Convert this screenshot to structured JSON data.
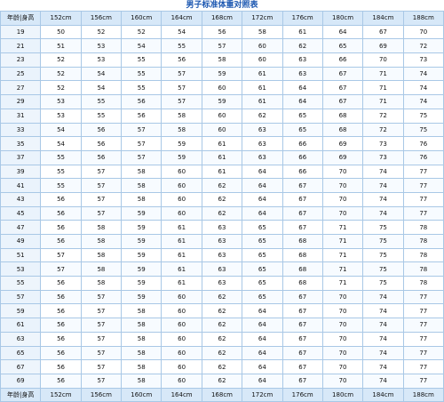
{
  "title": "男子标准体重对照表",
  "header": [
    "年龄|身高",
    "152cm",
    "156cm",
    "160cm",
    "164cm",
    "168cm",
    "172cm",
    "176cm",
    "180cm",
    "184cm",
    "188cm"
  ],
  "rows": [
    [
      "19",
      "50",
      "52",
      "52",
      "54",
      "56",
      "58",
      "61",
      "64",
      "67",
      "70"
    ],
    [
      "21",
      "51",
      "53",
      "54",
      "55",
      "57",
      "60",
      "62",
      "65",
      "69",
      "72"
    ],
    [
      "23",
      "52",
      "53",
      "55",
      "56",
      "58",
      "60",
      "63",
      "66",
      "70",
      "73"
    ],
    [
      "25",
      "52",
      "54",
      "55",
      "57",
      "59",
      "61",
      "63",
      "67",
      "71",
      "74"
    ],
    [
      "27",
      "52",
      "54",
      "55",
      "57",
      "60",
      "61",
      "64",
      "67",
      "71",
      "74"
    ],
    [
      "29",
      "53",
      "55",
      "56",
      "57",
      "59",
      "61",
      "64",
      "67",
      "71",
      "74"
    ],
    [
      "31",
      "53",
      "55",
      "56",
      "58",
      "60",
      "62",
      "65",
      "68",
      "72",
      "75"
    ],
    [
      "33",
      "54",
      "56",
      "57",
      "58",
      "60",
      "63",
      "65",
      "68",
      "72",
      "75"
    ],
    [
      "35",
      "54",
      "56",
      "57",
      "59",
      "61",
      "63",
      "66",
      "69",
      "73",
      "76"
    ],
    [
      "37",
      "55",
      "56",
      "57",
      "59",
      "61",
      "63",
      "66",
      "69",
      "73",
      "76"
    ],
    [
      "39",
      "55",
      "57",
      "58",
      "60",
      "61",
      "64",
      "66",
      "70",
      "74",
      "77"
    ],
    [
      "41",
      "55",
      "57",
      "58",
      "60",
      "62",
      "64",
      "67",
      "70",
      "74",
      "77"
    ],
    [
      "43",
      "56",
      "57",
      "58",
      "60",
      "62",
      "64",
      "67",
      "70",
      "74",
      "77"
    ],
    [
      "45",
      "56",
      "57",
      "59",
      "60",
      "62",
      "64",
      "67",
      "70",
      "74",
      "77"
    ],
    [
      "47",
      "56",
      "58",
      "59",
      "61",
      "63",
      "65",
      "67",
      "71",
      "75",
      "78"
    ],
    [
      "49",
      "56",
      "58",
      "59",
      "61",
      "63",
      "65",
      "68",
      "71",
      "75",
      "78"
    ],
    [
      "51",
      "57",
      "58",
      "59",
      "61",
      "63",
      "65",
      "68",
      "71",
      "75",
      "78"
    ],
    [
      "53",
      "57",
      "58",
      "59",
      "61",
      "63",
      "65",
      "68",
      "71",
      "75",
      "78"
    ],
    [
      "55",
      "56",
      "58",
      "59",
      "61",
      "63",
      "65",
      "68",
      "71",
      "75",
      "78"
    ],
    [
      "57",
      "56",
      "57",
      "59",
      "60",
      "62",
      "65",
      "67",
      "70",
      "74",
      "77"
    ],
    [
      "59",
      "56",
      "57",
      "58",
      "60",
      "62",
      "64",
      "67",
      "70",
      "74",
      "77"
    ],
    [
      "61",
      "56",
      "57",
      "58",
      "60",
      "62",
      "64",
      "67",
      "70",
      "74",
      "77"
    ],
    [
      "63",
      "56",
      "57",
      "58",
      "60",
      "62",
      "64",
      "67",
      "70",
      "74",
      "77"
    ],
    [
      "65",
      "56",
      "57",
      "58",
      "60",
      "62",
      "64",
      "67",
      "70",
      "74",
      "77"
    ],
    [
      "67",
      "56",
      "57",
      "58",
      "60",
      "62",
      "64",
      "67",
      "70",
      "74",
      "77"
    ],
    [
      "69",
      "56",
      "57",
      "58",
      "60",
      "62",
      "64",
      "67",
      "70",
      "74",
      "77"
    ]
  ],
  "footer": [
    "年龄|身高",
    "152cm",
    "156cm",
    "160cm",
    "164cm",
    "168cm",
    "172cm",
    "176cm",
    "180cm",
    "184cm",
    "188cm"
  ],
  "colors": {
    "title": "#1a56b0",
    "border": "#a9c8e6",
    "header_bg": "#d7e8f8"
  }
}
